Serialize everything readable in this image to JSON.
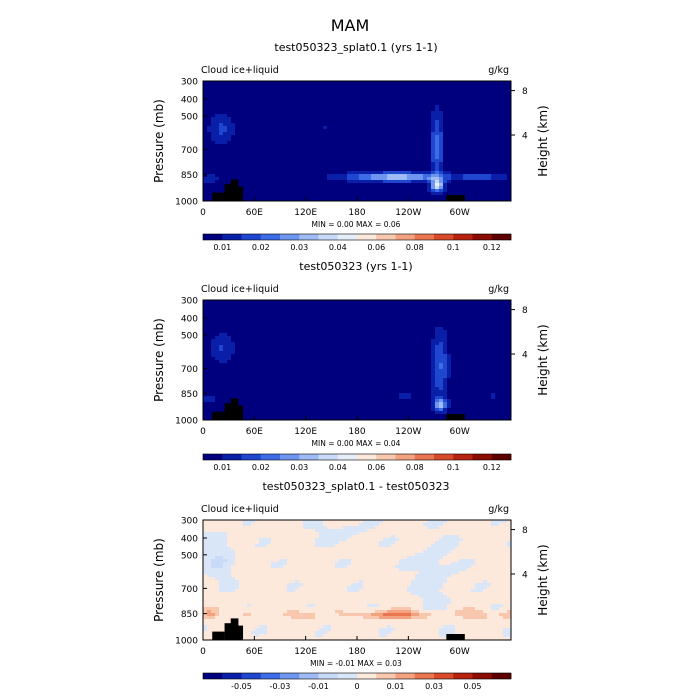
{
  "figure": {
    "title": "MAM"
  },
  "chart_data": [
    {
      "type": "heatmap",
      "title": "test050323_splat0.1 (yrs 1-1)",
      "left_label": "Cloud ice+liquid",
      "right_label": "g/kg",
      "ylabel": "Pressure (mb)",
      "ylabel_right": "Height (km)",
      "x_ticks": [
        "0",
        "60E",
        "120E",
        "180",
        "120W",
        "60W"
      ],
      "y_ticks": [
        "300",
        "400",
        "500",
        "700",
        "850",
        "1000"
      ],
      "y_right_ticks": [
        "8",
        "4"
      ],
      "stats": "MIN =    0.00   MAX =   0.06",
      "colorbar": {
        "labels": [
          "0.01",
          "0.02",
          "0.03",
          "0.04",
          "0.06",
          "0.08",
          "0.1",
          "0.12"
        ],
        "colors": [
          "#00007f",
          "#0a1fa8",
          "#1f46cf",
          "#3d6de6",
          "#6e96f0",
          "#9ebbf5",
          "#c8daf7",
          "#e6eefa",
          "#fde8dc",
          "#f8c8ae",
          "#f2a27e",
          "#e97650",
          "#d84a2a",
          "#b8230f",
          "#8b0c00",
          "#5f0000"
        ]
      },
      "field": {
        "base": 0.003,
        "range": [
          0,
          0.13
        ]
      }
    },
    {
      "type": "heatmap",
      "title": "test050323 (yrs 1-1)",
      "left_label": "Cloud ice+liquid",
      "right_label": "g/kg",
      "ylabel": "Pressure (mb)",
      "ylabel_right": "Height (km)",
      "x_ticks": [
        "0",
        "60E",
        "120E",
        "180",
        "120W",
        "60W"
      ],
      "y_ticks": [
        "300",
        "400",
        "500",
        "700",
        "850",
        "1000"
      ],
      "y_right_ticks": [
        "8",
        "4"
      ],
      "stats": "MIN =    0.00   MAX =   0.04",
      "colorbar": {
        "labels": [
          "0.01",
          "0.02",
          "0.03",
          "0.04",
          "0.06",
          "0.08",
          "0.1",
          "0.12"
        ],
        "colors": [
          "#00007f",
          "#0a1fa8",
          "#1f46cf",
          "#3d6de6",
          "#6e96f0",
          "#9ebbf5",
          "#c8daf7",
          "#e6eefa",
          "#fde8dc",
          "#f8c8ae",
          "#f2a27e",
          "#e97650",
          "#d84a2a",
          "#b8230f",
          "#8b0c00",
          "#5f0000"
        ]
      },
      "field": {
        "base": 0.003,
        "range": [
          0,
          0.13
        ]
      }
    },
    {
      "type": "heatmap",
      "title": "test050323_splat0.1 - test050323",
      "left_label": "Cloud ice+liquid",
      "right_label": "g/kg",
      "ylabel": "Pressure (mb)",
      "ylabel_right": "Height (km)",
      "x_ticks": [
        "0",
        "60E",
        "120E",
        "180",
        "120W",
        "60W"
      ],
      "y_ticks": [
        "300",
        "400",
        "500",
        "700",
        "850",
        "1000"
      ],
      "y_right_ticks": [
        "8",
        "4"
      ],
      "stats": "MIN =   -0.01   MAX =   0.03",
      "colorbar": {
        "labels": [
          "-0.05",
          "-0.03",
          "-0.01",
          "0",
          "0.01",
          "0.03",
          "0.05"
        ],
        "colors": [
          "#00007f",
          "#0a1fa8",
          "#1f46cf",
          "#3d6de6",
          "#6e96f0",
          "#9ebbf5",
          "#c8daf7",
          "#d8e6f7",
          "#fde8dc",
          "#f8c8ae",
          "#f2a27e",
          "#e97650",
          "#d84a2a",
          "#b8230f",
          "#8b0c00",
          "#5f0000"
        ]
      },
      "field": {
        "base": 0.0,
        "range": [
          -0.06,
          0.06
        ]
      }
    }
  ]
}
